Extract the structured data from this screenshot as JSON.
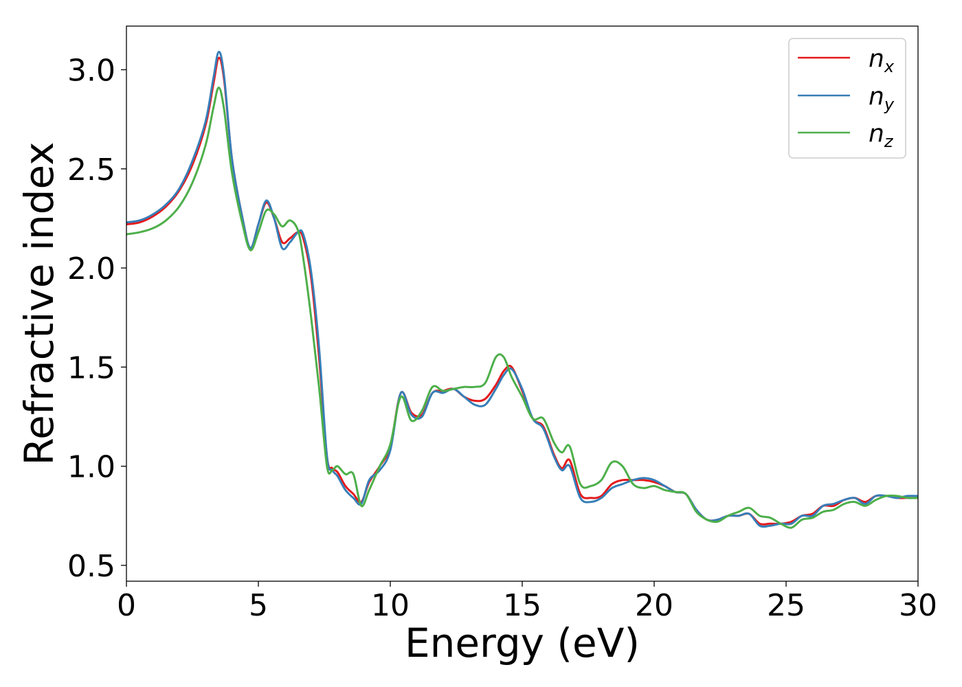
{
  "chart_data": {
    "type": "line",
    "xlabel": "Energy (eV)",
    "ylabel": "Refractive index",
    "xlim": [
      0,
      30
    ],
    "ylim": [
      0.42,
      3.22
    ],
    "xticks": [
      "0",
      "5",
      "10",
      "15",
      "20",
      "25",
      "30"
    ],
    "xtick_values": [
      0,
      5,
      10,
      15,
      20,
      25,
      30
    ],
    "yticks": [
      "0.5",
      "1.0",
      "1.5",
      "2.0",
      "2.5",
      "3.0"
    ],
    "ytick_values": [
      0.5,
      1.0,
      1.5,
      2.0,
      2.5,
      3.0
    ],
    "grid": false,
    "legend_position": "top-right",
    "x": [
      0,
      0.5,
      1.0,
      1.5,
      2.0,
      2.5,
      3.0,
      3.3,
      3.5,
      3.7,
      4.0,
      4.4,
      4.7,
      5.0,
      5.3,
      5.6,
      5.9,
      6.2,
      6.5,
      6.7,
      7.0,
      7.3,
      7.6,
      7.8,
      8.0,
      8.3,
      8.6,
      8.9,
      9.2,
      9.6,
      10.0,
      10.4,
      10.8,
      11.2,
      11.6,
      12.0,
      12.4,
      12.8,
      13.2,
      13.6,
      14.0,
      14.3,
      14.6,
      15.0,
      15.4,
      15.8,
      16.2,
      16.5,
      16.8,
      17.2,
      17.6,
      18.0,
      18.4,
      18.8,
      19.2,
      19.6,
      20.0,
      20.4,
      20.8,
      21.2,
      21.6,
      22.0,
      22.4,
      22.8,
      23.2,
      23.6,
      24.0,
      24.4,
      24.8,
      25.2,
      25.6,
      26.0,
      26.4,
      26.8,
      27.2,
      27.6,
      28.0,
      28.4,
      28.8,
      29.2,
      29.6,
      30.0
    ],
    "series": [
      {
        "name": "x",
        "color": "#e41a1c",
        "values": [
          2.22,
          2.23,
          2.26,
          2.31,
          2.39,
          2.52,
          2.72,
          2.93,
          3.06,
          2.95,
          2.55,
          2.25,
          2.1,
          2.22,
          2.33,
          2.25,
          2.13,
          2.15,
          2.18,
          2.15,
          1.95,
          1.55,
          1.05,
          0.99,
          0.97,
          0.9,
          0.86,
          0.82,
          0.92,
          1.0,
          1.1,
          1.37,
          1.27,
          1.26,
          1.37,
          1.38,
          1.39,
          1.35,
          1.33,
          1.34,
          1.41,
          1.48,
          1.5,
          1.38,
          1.24,
          1.2,
          1.06,
          0.99,
          1.03,
          0.86,
          0.84,
          0.85,
          0.91,
          0.93,
          0.93,
          0.93,
          0.92,
          0.9,
          0.87,
          0.86,
          0.78,
          0.73,
          0.73,
          0.75,
          0.75,
          0.76,
          0.71,
          0.71,
          0.71,
          0.72,
          0.75,
          0.76,
          0.8,
          0.8,
          0.83,
          0.84,
          0.82,
          0.85,
          0.85,
          0.84,
          0.84,
          0.84
        ]
      },
      {
        "name": "y",
        "color": "#377eb8",
        "values": [
          2.23,
          2.24,
          2.27,
          2.32,
          2.4,
          2.54,
          2.74,
          2.96,
          3.09,
          2.97,
          2.55,
          2.25,
          2.1,
          2.22,
          2.34,
          2.25,
          2.1,
          2.13,
          2.18,
          2.17,
          1.98,
          1.6,
          1.05,
          0.98,
          0.95,
          0.88,
          0.84,
          0.81,
          0.93,
          0.98,
          1.08,
          1.37,
          1.26,
          1.25,
          1.37,
          1.37,
          1.39,
          1.35,
          1.31,
          1.31,
          1.39,
          1.46,
          1.49,
          1.39,
          1.24,
          1.19,
          1.05,
          0.98,
          1.0,
          0.84,
          0.82,
          0.84,
          0.89,
          0.91,
          0.93,
          0.94,
          0.93,
          0.9,
          0.87,
          0.86,
          0.78,
          0.73,
          0.73,
          0.75,
          0.75,
          0.76,
          0.7,
          0.7,
          0.71,
          0.71,
          0.75,
          0.75,
          0.8,
          0.81,
          0.83,
          0.84,
          0.81,
          0.85,
          0.85,
          0.84,
          0.85,
          0.85
        ]
      },
      {
        "name": "z",
        "color": "#4daf4a",
        "values": [
          2.17,
          2.18,
          2.2,
          2.24,
          2.31,
          2.43,
          2.62,
          2.81,
          2.91,
          2.8,
          2.48,
          2.22,
          2.09,
          2.18,
          2.29,
          2.27,
          2.21,
          2.24,
          2.19,
          2.05,
          1.75,
          1.4,
          1.0,
          0.98,
          1.0,
          0.96,
          0.96,
          0.8,
          0.88,
          1.0,
          1.11,
          1.35,
          1.23,
          1.28,
          1.4,
          1.38,
          1.39,
          1.4,
          1.4,
          1.42,
          1.55,
          1.55,
          1.45,
          1.35,
          1.24,
          1.24,
          1.12,
          1.07,
          1.1,
          0.91,
          0.9,
          0.93,
          1.02,
          1.0,
          0.91,
          0.89,
          0.9,
          0.88,
          0.87,
          0.86,
          0.77,
          0.73,
          0.72,
          0.75,
          0.77,
          0.79,
          0.75,
          0.74,
          0.71,
          0.69,
          0.73,
          0.74,
          0.77,
          0.78,
          0.81,
          0.82,
          0.8,
          0.83,
          0.85,
          0.85,
          0.84,
          0.84
        ]
      }
    ]
  },
  "legend": {
    "entries": [
      {
        "symbol": "n",
        "subscript": "x",
        "color": "#e41a1c"
      },
      {
        "symbol": "n",
        "subscript": "y",
        "color": "#377eb8"
      },
      {
        "symbol": "n",
        "subscript": "z",
        "color": "#4daf4a"
      }
    ]
  }
}
